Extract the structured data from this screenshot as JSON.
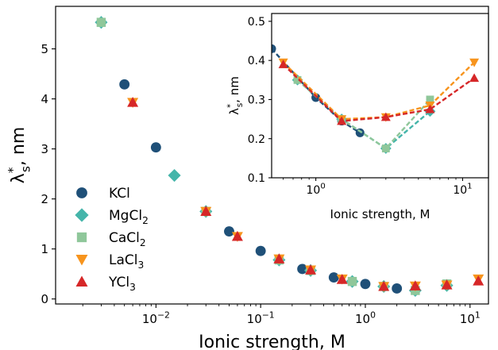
{
  "chart_data": [
    {
      "type": "scatter",
      "title": "",
      "xlabel": "Ionic strength, M",
      "ylabel_main": "λ",
      "ylabel_sup": "*",
      "ylabel_sub": "s",
      "ylabel_unit": ", nm",
      "xscale": "log",
      "xlim": [
        0.0011,
        15
      ],
      "ylim": [
        -0.1,
        5.85
      ],
      "xticks": [
        {
          "value": 0.01,
          "base": "10",
          "exp": "−2"
        },
        {
          "value": 0.1,
          "base": "10",
          "exp": "−1"
        },
        {
          "value": 1,
          "base": "10",
          "exp": "0"
        },
        {
          "value": 10,
          "base": "10",
          "exp": "1"
        }
      ],
      "yticks": [
        {
          "value": 0,
          "label": "0"
        },
        {
          "value": 1,
          "label": "1"
        },
        {
          "value": 2,
          "label": "2"
        },
        {
          "value": 3,
          "label": "3"
        },
        {
          "value": 4,
          "label": "4"
        },
        {
          "value": 5,
          "label": "5"
        }
      ],
      "legend_position": "lower-left",
      "series": [
        {
          "name": "KCl",
          "label_main": "KCl",
          "label_sub": "",
          "color": "#1f5078",
          "marker": "circle",
          "points": [
            [
              0.005,
              4.29
            ],
            [
              0.01,
              3.03
            ],
            [
              0.05,
              1.35
            ],
            [
              0.1,
              0.96
            ],
            [
              0.25,
              0.6
            ],
            [
              0.5,
              0.43
            ],
            [
              1.0,
              0.3
            ],
            [
              2.0,
              0.21
            ]
          ]
        },
        {
          "name": "MgCl2",
          "label_main": "MgCl",
          "label_sub": "2",
          "color": "#45b5aa",
          "marker": "diamond",
          "points": [
            [
              0.003,
              5.53
            ],
            [
              0.015,
              2.47
            ],
            [
              0.03,
              1.75
            ],
            [
              0.15,
              0.78
            ],
            [
              0.3,
              0.57
            ],
            [
              0.75,
              0.35
            ],
            [
              1.5,
              0.25
            ],
            [
              3.0,
              0.17
            ],
            [
              6.0,
              0.27
            ]
          ]
        },
        {
          "name": "CaCl2",
          "label_main": "CaCl",
          "label_sub": "2",
          "color": "#8fc79a",
          "marker": "square",
          "points": [
            [
              0.003,
              5.53
            ],
            [
              0.03,
              1.75
            ],
            [
              0.15,
              0.78
            ],
            [
              0.3,
              0.57
            ],
            [
              0.75,
              0.35
            ],
            [
              1.5,
              0.25
            ],
            [
              3.0,
              0.17
            ],
            [
              6.0,
              0.3
            ]
          ]
        },
        {
          "name": "LaCl3",
          "label_main": "LaCl",
          "label_sub": "3",
          "color": "#f7941d",
          "marker": "triangle-down",
          "points": [
            [
              0.006,
              3.93
            ],
            [
              0.03,
              1.75
            ],
            [
              0.06,
              1.25
            ],
            [
              0.15,
              0.8
            ],
            [
              0.3,
              0.58
            ],
            [
              0.6,
              0.4
            ],
            [
              1.5,
              0.25
            ],
            [
              3.0,
              0.26
            ],
            [
              6.0,
              0.28
            ],
            [
              12.0,
              0.4
            ]
          ]
        },
        {
          "name": "YCl3",
          "label_main": "YCl",
          "label_sub": "3",
          "color": "#d62728",
          "marker": "triangle-up",
          "points": [
            [
              0.006,
              3.93
            ],
            [
              0.03,
              1.75
            ],
            [
              0.06,
              1.25
            ],
            [
              0.15,
              0.8
            ],
            [
              0.3,
              0.58
            ],
            [
              0.6,
              0.39
            ],
            [
              1.5,
              0.25
            ],
            [
              3.0,
              0.26
            ],
            [
              6.0,
              0.28
            ],
            [
              12.0,
              0.36
            ]
          ]
        }
      ]
    },
    {
      "type": "line",
      "title": "",
      "xlabel": "Ionic strength, M",
      "ylabel_main": "λ",
      "ylabel_sup": "*",
      "ylabel_sub": "s",
      "ylabel_unit": ", nm",
      "xscale": "log",
      "xlim": [
        0.5,
        15
      ],
      "ylim": [
        0.1,
        0.52
      ],
      "xticks": [
        {
          "value": 1,
          "base": "10",
          "exp": "0"
        },
        {
          "value": 10,
          "base": "10",
          "exp": "1"
        }
      ],
      "yticks": [
        {
          "value": 0.1,
          "label": "0.1"
        },
        {
          "value": 0.2,
          "label": "0.2"
        },
        {
          "value": 0.3,
          "label": "0.3"
        },
        {
          "value": 0.4,
          "label": "0.4"
        },
        {
          "value": 0.5,
          "label": "0.5"
        }
      ],
      "series": [
        {
          "name": "KCl",
          "color": "#1f5078",
          "marker": "circle",
          "points": [
            [
              0.5,
              0.43
            ],
            [
              1.0,
              0.305
            ],
            [
              1.5,
              0.245
            ],
            [
              2.0,
              0.215
            ]
          ]
        },
        {
          "name": "MgCl2",
          "color": "#45b5aa",
          "marker": "diamond",
          "points": [
            [
              0.75,
              0.35
            ],
            [
              1.5,
              0.25
            ],
            [
              3.0,
              0.175
            ],
            [
              6.0,
              0.27
            ]
          ]
        },
        {
          "name": "CaCl2",
          "color": "#8fc79a",
          "marker": "square",
          "points": [
            [
              0.75,
              0.35
            ],
            [
              1.5,
              0.25
            ],
            [
              3.0,
              0.175
            ],
            [
              6.0,
              0.3
            ]
          ]
        },
        {
          "name": "LaCl3",
          "color": "#f7941d",
          "marker": "triangle-down",
          "points": [
            [
              0.6,
              0.395
            ],
            [
              1.5,
              0.25
            ],
            [
              3.0,
              0.255
            ],
            [
              6.0,
              0.285
            ],
            [
              12.0,
              0.395
            ]
          ]
        },
        {
          "name": "YCl3",
          "color": "#d62728",
          "marker": "triangle-up",
          "points": [
            [
              0.6,
              0.39
            ],
            [
              1.5,
              0.245
            ],
            [
              3.0,
              0.255
            ],
            [
              6.0,
              0.275
            ],
            [
              12.0,
              0.355
            ]
          ]
        }
      ]
    }
  ]
}
